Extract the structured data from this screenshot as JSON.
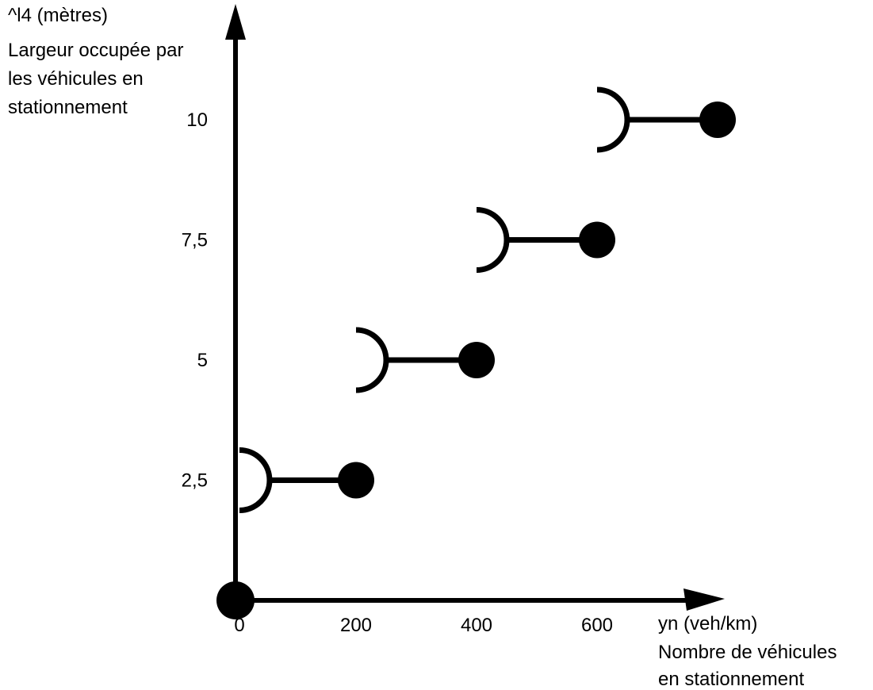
{
  "chart_data": {
    "type": "line",
    "x_axis": {
      "unit_label": "yn (veh/km)",
      "title_lines": [
        "Nombre de véhicules",
        "en stationnement"
      ],
      "ticks": [
        "0",
        "200",
        "400",
        "600"
      ],
      "tick_values": [
        0,
        200,
        400,
        600
      ]
    },
    "y_axis": {
      "unit_label": "^l4 (mètres)",
      "title_lines": [
        "Largeur occupée par",
        "les véhicules en",
        "stationnement"
      ],
      "ticks": [
        "2,5",
        "5",
        "7,5",
        "10"
      ],
      "tick_values": [
        2.5,
        5,
        7.5,
        10
      ]
    },
    "origin_point": {
      "x": 0,
      "y": 0
    },
    "segments": [
      {
        "y": 2.5,
        "x_open": 0,
        "x_closed": 200
      },
      {
        "y": 5,
        "x_open": 200,
        "x_closed": 400
      },
      {
        "y": 7.5,
        "x_open": 400,
        "x_closed": 600
      },
      {
        "y": 10,
        "x_open": 600,
        "x_closed": 800
      }
    ]
  }
}
